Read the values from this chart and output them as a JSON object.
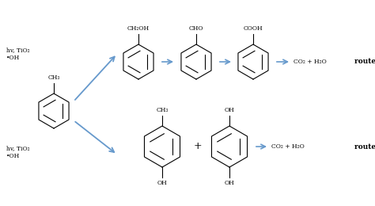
{
  "background_color": "#ffffff",
  "arrow_color": "#6699cc",
  "text_color": "#000000",
  "line_color": "#000000",
  "route_a_label": "route A",
  "route_b_label": "route B",
  "figsize": [
    4.74,
    2.6
  ],
  "dpi": 100,
  "hv_tio2_oh_top": "hv, TiO₂\n•OH",
  "hv_tio2_oh_bottom": "hv, TiO₂\n•OH",
  "ch2oh_label": "CH₂OH",
  "cho_label": "CHO",
  "cooh_label": "COOH",
  "ch3_toluene": "CH₃",
  "ch3_cresol": "CH₃",
  "oh_top": "OH",
  "oh_bottom1": "OH",
  "oh_bottom2": "OH",
  "plus_sign": "+",
  "co2_h2o_a": "CO₂ + H₂O",
  "co2_h2o_b": "CO₂ + H₂O"
}
